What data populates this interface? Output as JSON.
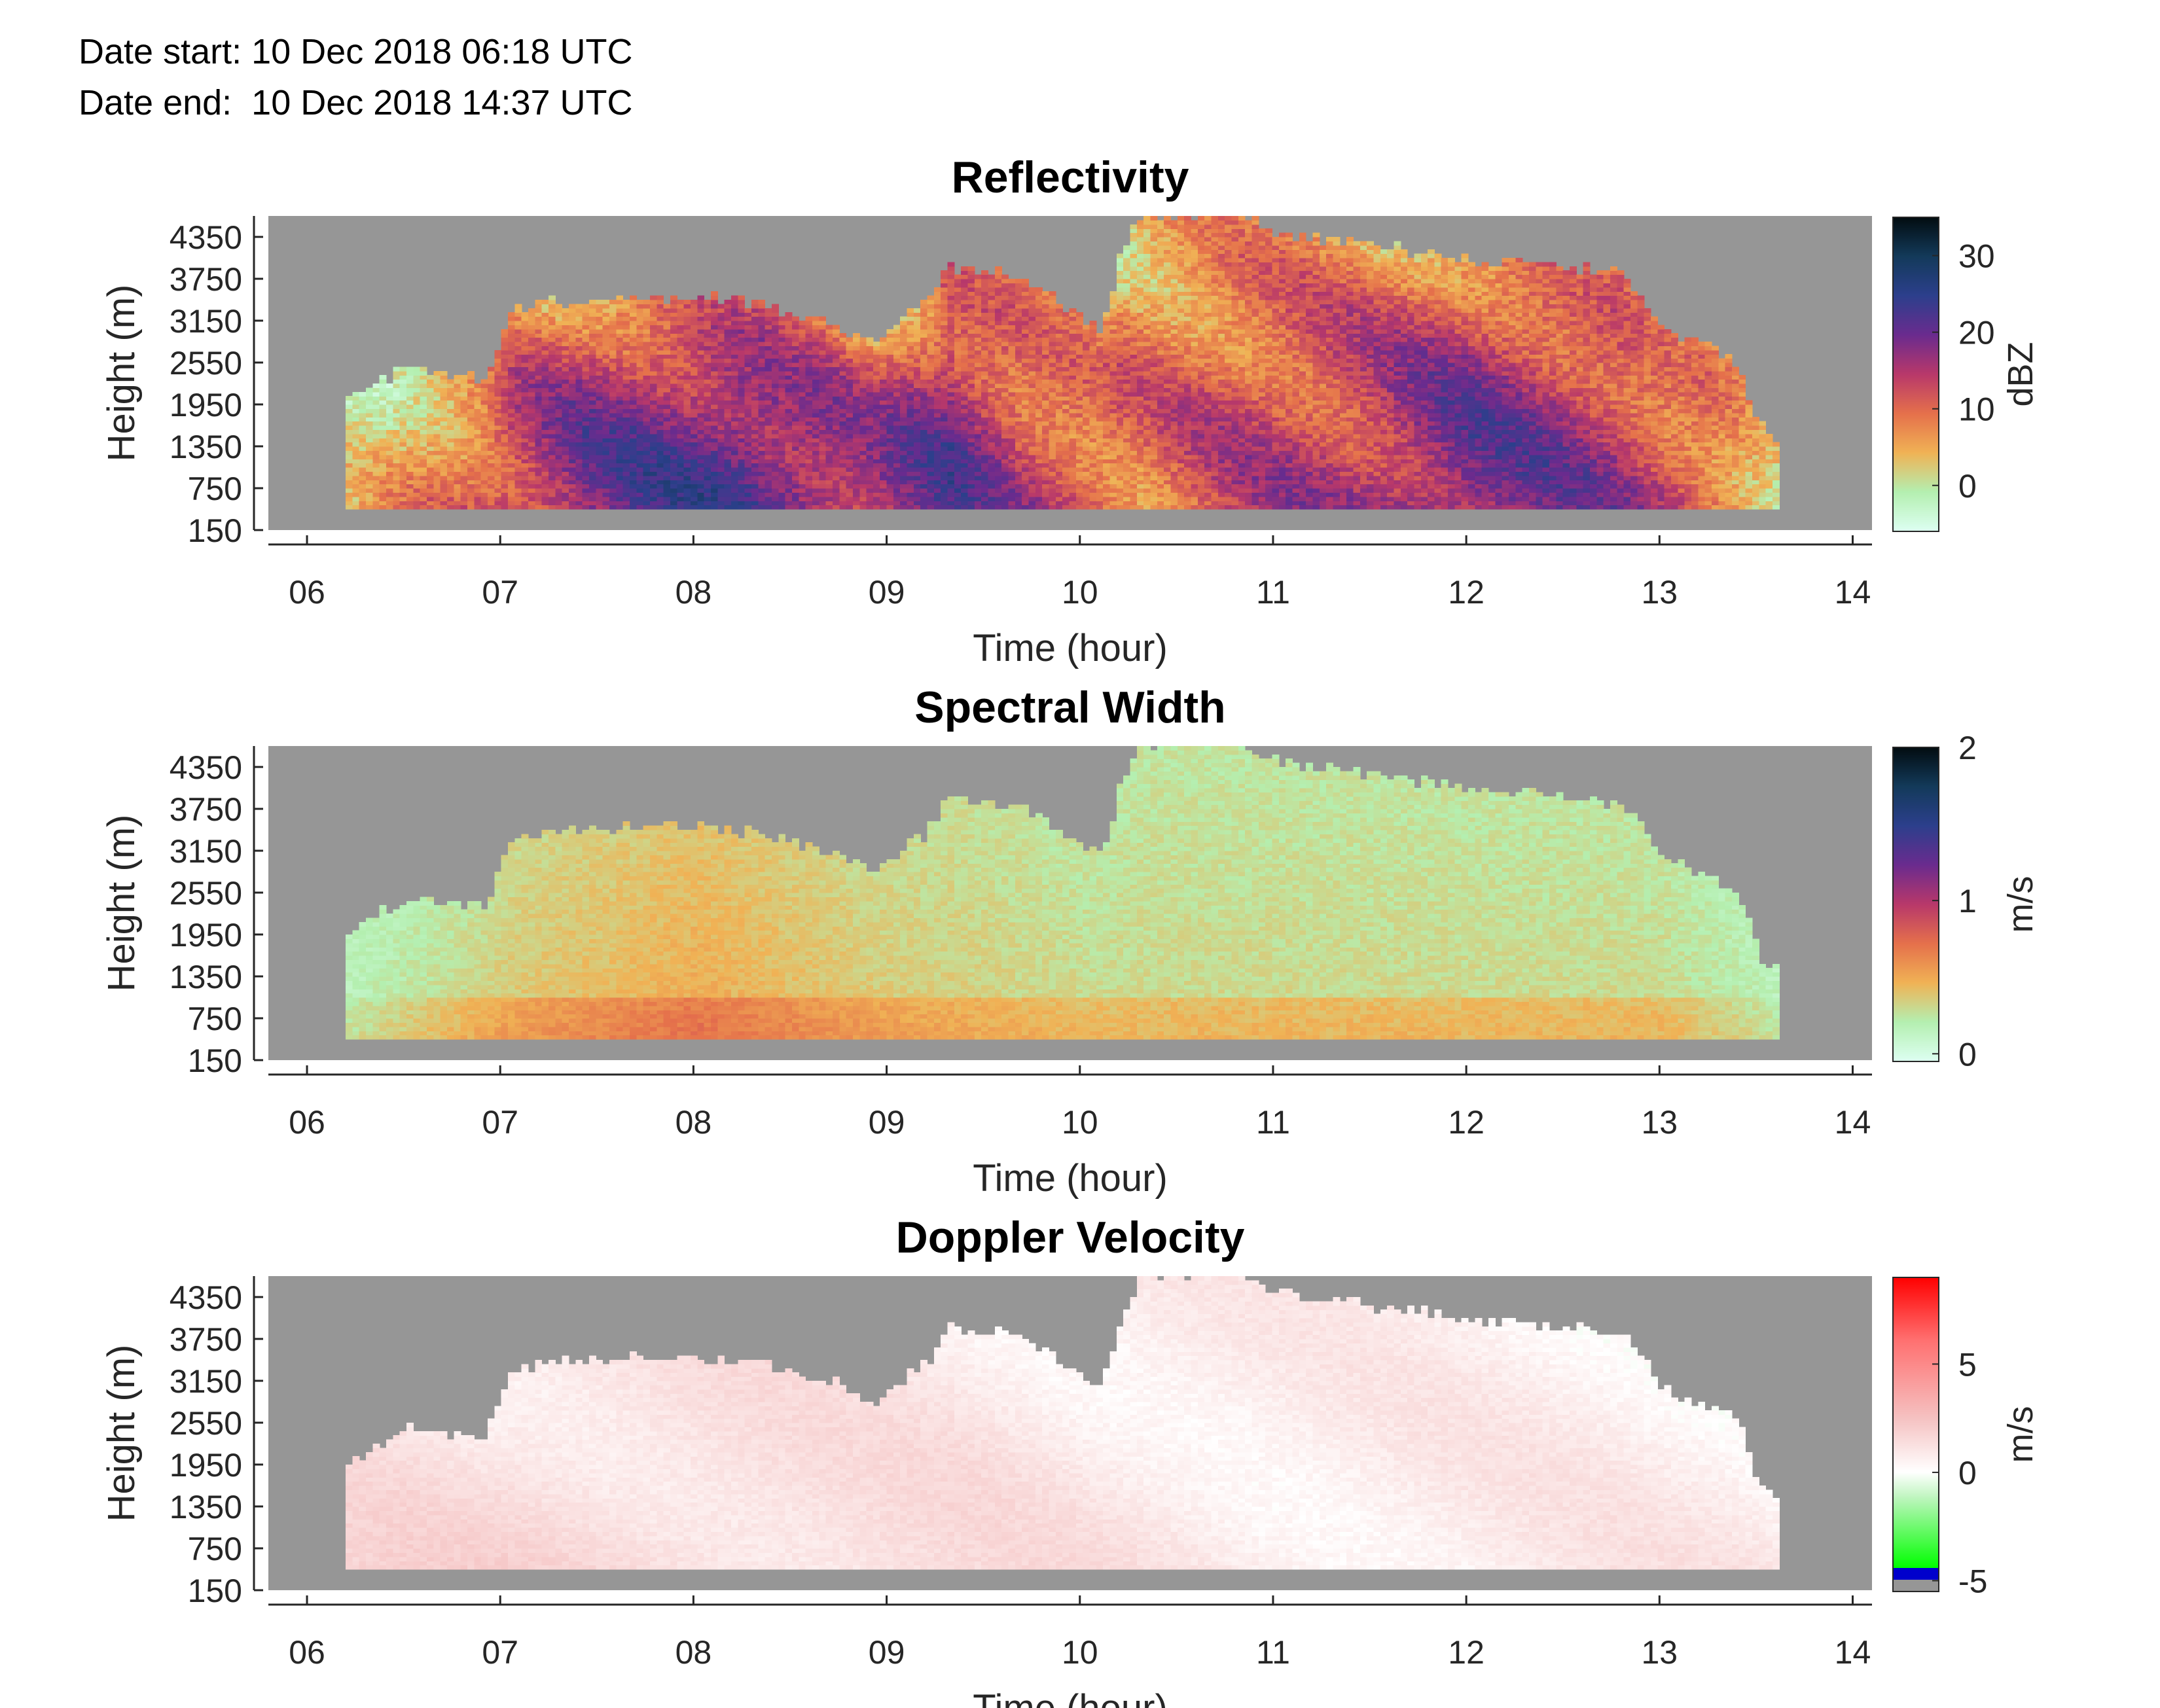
{
  "header": {
    "date_start": "Date start: 10 Dec 2018 06:18 UTC",
    "date_end": "Date end:  10 Dec 2018 14:37 UTC"
  },
  "chart_data": [
    {
      "type": "heatmap",
      "title": "Reflectivity",
      "xlabel": "Time (hour)",
      "ylabel": "Height (m)",
      "x_ticks": [
        "06",
        "07",
        "08",
        "09",
        "10",
        "11",
        "12",
        "13",
        "14"
      ],
      "xlim": [
        5.8,
        14.1
      ],
      "y_ticks": [
        150,
        750,
        1350,
        1950,
        2550,
        3150,
        3750,
        4350
      ],
      "ylim": [
        150,
        4650
      ],
      "colorbar": {
        "label": "dBZ",
        "ticks": [
          0,
          10,
          20,
          30
        ],
        "range": [
          -6,
          35
        ],
        "colors": [
          "#ddfff2",
          "#b4efb0",
          "#f0b255",
          "#e5704b",
          "#b8386a",
          "#6a2b8e",
          "#2c3f8c",
          "#133a5a",
          "#020c10"
        ]
      },
      "background": "#969696",
      "echo_top_m": [
        [
          6.2,
          1950
        ],
        [
          6.5,
          2450
        ],
        [
          6.9,
          2300
        ],
        [
          7.05,
          3300
        ],
        [
          7.3,
          3400
        ],
        [
          7.7,
          3450
        ],
        [
          8.0,
          3450
        ],
        [
          8.3,
          3400
        ],
        [
          8.7,
          3100
        ],
        [
          8.9,
          2800
        ],
        [
          9.2,
          3400
        ],
        [
          9.3,
          3900
        ],
        [
          9.6,
          3800
        ],
        [
          9.8,
          3550
        ],
        [
          10.1,
          3000
        ],
        [
          10.2,
          4100
        ],
        [
          10.3,
          4650
        ],
        [
          10.8,
          4650
        ],
        [
          11.0,
          4400
        ],
        [
          11.5,
          4200
        ],
        [
          12.0,
          4000
        ],
        [
          12.5,
          3900
        ],
        [
          12.8,
          3800
        ],
        [
          13.0,
          3000
        ],
        [
          13.2,
          2800
        ],
        [
          13.4,
          2500
        ],
        [
          13.5,
          1600
        ],
        [
          13.6,
          1400
        ]
      ],
      "echo_base_m": 450,
      "mean_dbz": [
        [
          6.2,
          0
        ],
        [
          6.6,
          8
        ],
        [
          7.0,
          14
        ],
        [
          7.4,
          19
        ],
        [
          8.2,
          22
        ],
        [
          8.9,
          17
        ],
        [
          9.3,
          20
        ],
        [
          9.7,
          14
        ],
        [
          10.3,
          10
        ],
        [
          10.8,
          13
        ],
        [
          11.4,
          15
        ],
        [
          12.0,
          20
        ],
        [
          12.6,
          17
        ],
        [
          13.2,
          12
        ],
        [
          13.6,
          4
        ]
      ]
    },
    {
      "type": "heatmap",
      "title": "Spectral Width",
      "xlabel": "Time (hour)",
      "ylabel": "Height (m)",
      "x_ticks": [
        "06",
        "07",
        "08",
        "09",
        "10",
        "11",
        "12",
        "13",
        "14"
      ],
      "xlim": [
        5.8,
        14.1
      ],
      "y_ticks": [
        150,
        750,
        1350,
        1950,
        2550,
        3150,
        3750,
        4350
      ],
      "ylim": [
        150,
        4650
      ],
      "colorbar": {
        "label": "m/s",
        "ticks": [
          0,
          1,
          2
        ],
        "range": [
          -0.05,
          2
        ],
        "colors": [
          "#ddfff2",
          "#b4efb0",
          "#f0b255",
          "#e5704b",
          "#b8386a",
          "#6a2b8e",
          "#2c3f8c",
          "#133a5a",
          "#020c10"
        ]
      },
      "background": "#969696",
      "echo_top_m": [
        [
          6.2,
          1950
        ],
        [
          6.5,
          2450
        ],
        [
          6.9,
          2300
        ],
        [
          7.05,
          3300
        ],
        [
          7.3,
          3400
        ],
        [
          7.7,
          3450
        ],
        [
          8.0,
          3450
        ],
        [
          8.3,
          3400
        ],
        [
          8.7,
          3100
        ],
        [
          8.9,
          2800
        ],
        [
          9.2,
          3400
        ],
        [
          9.3,
          3900
        ],
        [
          9.6,
          3800
        ],
        [
          9.8,
          3550
        ],
        [
          10.1,
          3000
        ],
        [
          10.2,
          4100
        ],
        [
          10.3,
          4650
        ],
        [
          10.8,
          4650
        ],
        [
          11.0,
          4400
        ],
        [
          11.5,
          4200
        ],
        [
          12.0,
          4000
        ],
        [
          12.5,
          3900
        ],
        [
          12.8,
          3800
        ],
        [
          13.0,
          3000
        ],
        [
          13.2,
          2800
        ],
        [
          13.4,
          2500
        ],
        [
          13.5,
          1600
        ],
        [
          13.6,
          1400
        ]
      ],
      "echo_base_m": 450,
      "mean_width_m_s": [
        [
          6.2,
          0.15
        ],
        [
          7.0,
          0.3
        ],
        [
          8.0,
          0.4
        ],
        [
          9.0,
          0.3
        ],
        [
          10.0,
          0.25
        ],
        [
          11.0,
          0.25
        ],
        [
          12.0,
          0.25
        ],
        [
          13.0,
          0.25
        ],
        [
          13.6,
          0.15
        ]
      ]
    },
    {
      "type": "heatmap",
      "title": "Doppler Velocity",
      "xlabel": "Time (hour)",
      "ylabel": "Height (m)",
      "x_ticks": [
        "06",
        "07",
        "08",
        "09",
        "10",
        "11",
        "12",
        "13",
        "14"
      ],
      "xlim": [
        5.8,
        14.1
      ],
      "y_ticks": [
        150,
        750,
        1350,
        1950,
        2550,
        3150,
        3750,
        4350
      ],
      "ylim": [
        150,
        4650
      ],
      "colorbar": {
        "label": "m/s",
        "ticks": [
          -5,
          0,
          5
        ],
        "range": [
          -5.5,
          9
        ],
        "colors": [
          "#969696",
          "#969696",
          "#0000cc",
          "#0000cc",
          "#00ff00",
          "#bff5bf",
          "#ffffff",
          "#f5c2c2",
          "#ff7070",
          "#ff0000"
        ],
        "stops": [
          0,
          0.037,
          0.037,
          0.075,
          0.075,
          0.3,
          0.38,
          0.55,
          0.8,
          1.0
        ]
      },
      "background": "#969696",
      "echo_top_m": [
        [
          6.2,
          1950
        ],
        [
          6.5,
          2450
        ],
        [
          6.9,
          2300
        ],
        [
          7.05,
          3300
        ],
        [
          7.3,
          3400
        ],
        [
          7.7,
          3450
        ],
        [
          8.0,
          3450
        ],
        [
          8.3,
          3400
        ],
        [
          8.7,
          3100
        ],
        [
          8.9,
          2800
        ],
        [
          9.2,
          3400
        ],
        [
          9.3,
          3900
        ],
        [
          9.6,
          3800
        ],
        [
          9.8,
          3550
        ],
        [
          10.1,
          3000
        ],
        [
          10.2,
          4100
        ],
        [
          10.3,
          4650
        ],
        [
          10.8,
          4650
        ],
        [
          11.0,
          4400
        ],
        [
          11.5,
          4200
        ],
        [
          12.0,
          4000
        ],
        [
          12.5,
          3900
        ],
        [
          12.8,
          3800
        ],
        [
          13.0,
          3000
        ],
        [
          13.2,
          2800
        ],
        [
          13.4,
          2500
        ],
        [
          13.5,
          1600
        ],
        [
          13.6,
          1400
        ]
      ],
      "echo_base_m": 450,
      "mean_velocity_m_s": [
        [
          6.2,
          1.5
        ],
        [
          8.0,
          1.5
        ],
        [
          9.5,
          1.2
        ],
        [
          11.0,
          0.8
        ],
        [
          12.5,
          0.8
        ],
        [
          13.6,
          0.8
        ]
      ]
    }
  ]
}
